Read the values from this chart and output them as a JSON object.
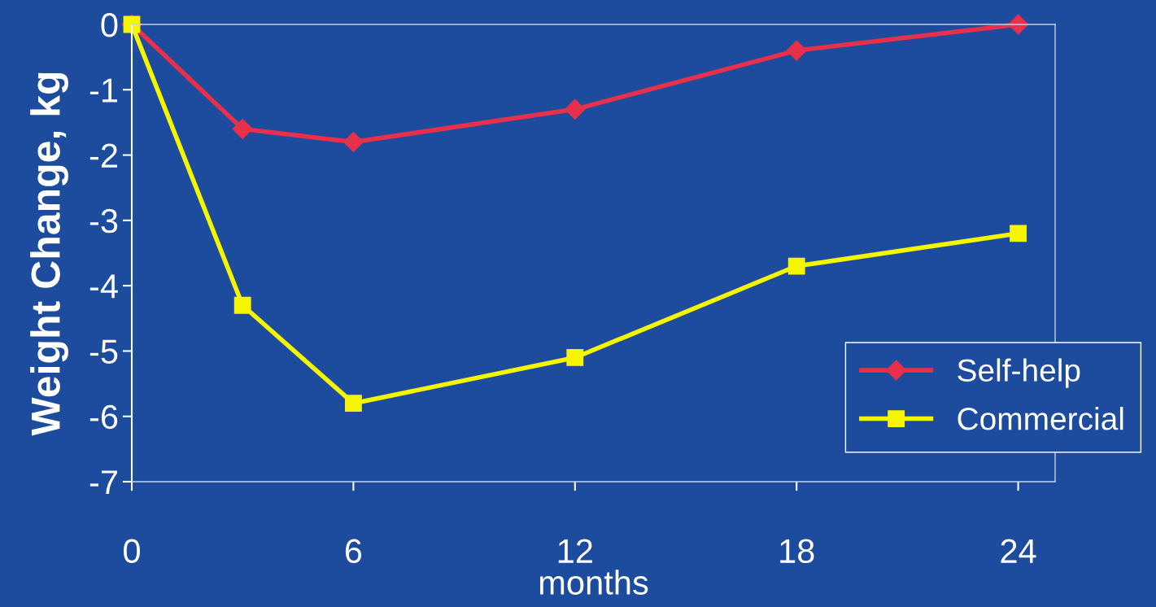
{
  "chart_data": {
    "type": "line",
    "xlabel": "months",
    "ylabel": "Weight Change, kg",
    "x": [
      0,
      3,
      6,
      12,
      18,
      24
    ],
    "series": [
      {
        "name": "Self-help",
        "color": "#e8304a",
        "marker": "diamond",
        "values": [
          0,
          -1.6,
          -1.8,
          -1.3,
          -0.4,
          0
        ]
      },
      {
        "name": "Commercial",
        "color": "#f5f500",
        "marker": "square",
        "values": [
          0,
          -4.3,
          -5.8,
          -5.1,
          -3.7,
          -3.2
        ]
      }
    ],
    "xlim": [
      0,
      25
    ],
    "xticks": [
      0,
      6,
      12,
      18,
      24
    ],
    "ylim": [
      -7,
      0
    ],
    "yticks": [
      0,
      -1,
      -2,
      -3,
      -4,
      -5,
      -6,
      -7
    ],
    "grid": false,
    "legend": "bottom right",
    "line_style": "solid"
  }
}
